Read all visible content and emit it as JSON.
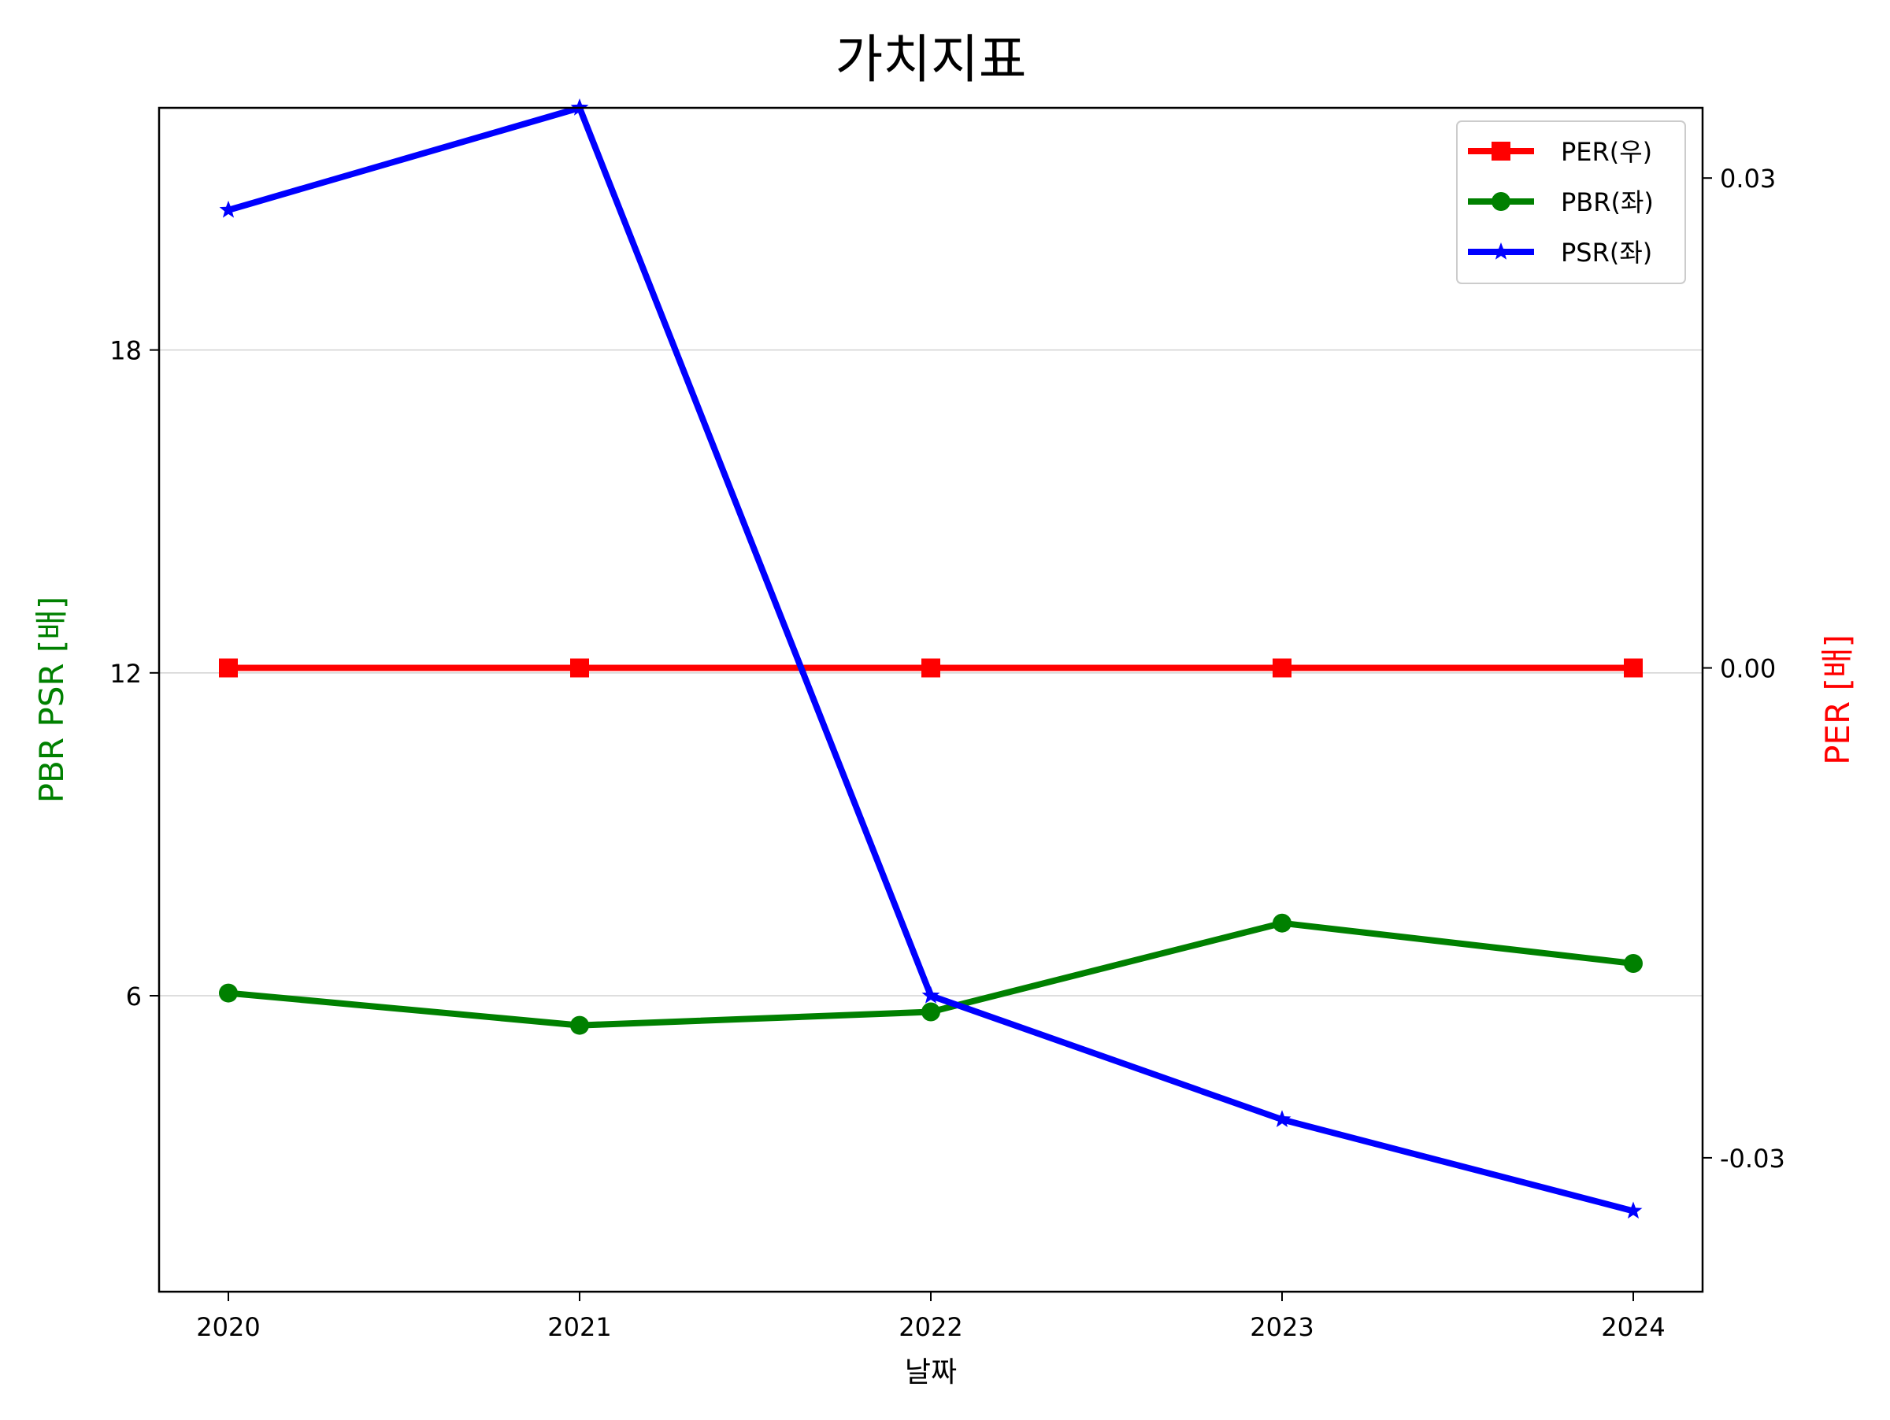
{
  "chart_data": {
    "type": "line",
    "title": "가치지표",
    "xlabel": "날짜",
    "ylabel_left": "PBR PSR [배]",
    "ylabel_right": "PER [배]",
    "categories": [
      "2020",
      "2021",
      "2022",
      "2023",
      "2024"
    ],
    "left_axis": {
      "ylim": [
        0.5,
        22.5
      ],
      "ticks": [
        6,
        12,
        18
      ],
      "tick_labels": [
        "6",
        "12",
        "18"
      ],
      "label_color": "#008000"
    },
    "right_axis": {
      "ylim": [
        -0.0382,
        0.0343
      ],
      "ticks": [
        -0.03,
        0.0,
        0.03
      ],
      "tick_labels": [
        "-0.03",
        "0.00",
        "0.03"
      ],
      "label_color": "#ff0000"
    },
    "grid": "horizontal",
    "legend_position": "top-right",
    "series": [
      {
        "name": "PER(우)",
        "axis": "right",
        "color": "#ff0000",
        "marker": "square",
        "values": [
          0.0,
          0.0,
          0.0,
          0.0,
          0.0
        ]
      },
      {
        "name": "PBR(좌)",
        "axis": "left",
        "color": "#008000",
        "marker": "circle",
        "values": [
          6.05,
          5.45,
          5.7,
          7.35,
          6.6
        ]
      },
      {
        "name": "PSR(좌)",
        "axis": "left",
        "color": "#0000ff",
        "marker": "star",
        "values": [
          20.6,
          22.5,
          6.0,
          3.7,
          2.0
        ]
      }
    ]
  }
}
